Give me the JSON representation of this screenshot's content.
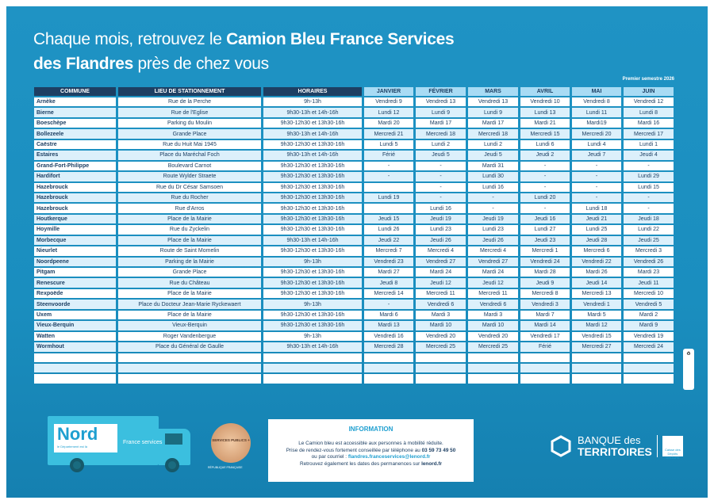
{
  "title": {
    "line1_regular": "Chaque mois, retrouvez le ",
    "line1_bold": "Camion Bleu France Services",
    "line2_bold": "des Flandres",
    "line2_regular": " près de chez vous"
  },
  "semester": "Premier semestre 2026",
  "headers": [
    "COMMUNE",
    "LIEU DE STATIONNEMENT",
    "HORAIRES",
    "JANVIER",
    "FÉVRIER",
    "MARS",
    "AVRIL",
    "MAI",
    "JUIN"
  ],
  "rows": [
    [
      "Arnèke",
      "Rue de la Perche",
      "9h-13h",
      "Vendredi 9",
      "Vendredi 13",
      "Vendredi 13",
      "Vendredi 10",
      "Vendredi 8",
      "Vendredi 12"
    ],
    [
      "Bierne",
      "Rue de l'Eglise",
      "9h30-13h et 14h-16h",
      "Lundi 12",
      "Lundi 9",
      "Lundi 9",
      "Lundi 13",
      "Lundi 11",
      "Lundi 8"
    ],
    [
      "Boeschèpe",
      "Parking du Moulin",
      "9h30-12h30 et 13h30-16h",
      "Mardi 20",
      "Mardi 17",
      "Mardi 17",
      "Mardi 21",
      "Mardi19",
      "Mardi 16"
    ],
    [
      "Bollezeele",
      "Grande Place",
      "9h30-13h et 14h-16h",
      "Mercredi 21",
      "Mercredi 18",
      "Mercredi 18",
      "Mercredi 15",
      "Mercredi 20",
      "Mercredi 17"
    ],
    [
      "Caëstre",
      "Rue du Huit Mai 1945",
      "9h30-12h30 et 13h30-16h",
      "Lundi 5",
      "Lundi 2",
      "Lundi 2",
      "Lundi 6",
      "Lundi 4",
      "Lundi 1"
    ],
    [
      "Estaires",
      "Place du Maréchal Foch",
      "9h30-13h et 14h-16h",
      "Férié",
      "Jeudi 5",
      "Jeudi 5",
      "Jeudi 2",
      "Jeudi 7",
      "Jeudi 4"
    ],
    [
      "Grand-Fort-Philippe",
      "Boulevard Carnot",
      "9h30-12h30 et 13h30-16h",
      "-",
      "-",
      "Mardi 31",
      "-",
      "-",
      "-"
    ],
    [
      "Hardifort",
      "Route Wylder Straete",
      "9h30-12h30 et 13h30-16h",
      "-",
      "-",
      "Lundi 30",
      "-",
      "-",
      "Lundi 29"
    ],
    [
      "Hazebrouck",
      "Rue du Dr César Samsoen",
      "9h30-12h30 et 13h30-16h",
      "",
      "-",
      "Lundi 16",
      "-",
      "-",
      "Lundi 15"
    ],
    [
      "Hazebrouck",
      "Rue du Rocher",
      "9h30-12h30 et 13h30-16h",
      "Lundi 19",
      "-",
      "-",
      "Lundi 20",
      "-",
      "-"
    ],
    [
      "Hazebrouck",
      "Rue d'Arros",
      "9h30-12h30 et 13h30-16h",
      "",
      "Lundi 16",
      "-",
      "-",
      "Lundi 18",
      "-"
    ],
    [
      "Houtkerque",
      "Place de la Mairie",
      "9h30-12h30 et 13h30-16h",
      "Jeudi 15",
      "Jeudi 19",
      "Jeudi 19",
      "Jeudi 16",
      "Jeudi 21",
      "Jeudi 18"
    ],
    [
      "Hoymille",
      "Rue du Zyckelin",
      "9h30-12h30 et 13h30-16h",
      "Lundi 26",
      "Lundi 23",
      "Lundi 23",
      "Lundi 27",
      "Lundi 25",
      "Lundi 22"
    ],
    [
      "Morbecque",
      "Place de la Mairie",
      "9h30-13h et 14h-16h",
      "Jeudi 22",
      "Jeudi 26",
      "Jeudi 26",
      "Jeudi 23",
      "Jeudi 28",
      "Jeudi 25"
    ],
    [
      "Nieurlet",
      "Route de Saint Momelin",
      "9h30-12h30 et 13h30-16h",
      "Mercredi 7",
      "Mercredi 4",
      "Mercredi 4",
      "Mercredi 1",
      "Mercredi 6",
      "Mercredi 3"
    ],
    [
      "Noordpeene",
      "Parking de la Mairie",
      "9h-13h",
      "Vendredi 23",
      "Vendredi 27",
      "Vendredi 27",
      "Vendredi 24",
      "Vendredi 22",
      "Vendredi 26"
    ],
    [
      "Pitgam",
      "Grande Place",
      "9h30-12h30 et 13h30-16h",
      "Mardi 27",
      "Mardi 24",
      "Mardi 24",
      "Mardi 28",
      "Mardi 26",
      "Mardi 23"
    ],
    [
      "Renescure",
      "Rue du Château",
      "9h30-12h30 et 13h30-16h",
      "Jeudi 8",
      "Jeudi 12",
      "Jeudi 12",
      "Jeudi 9",
      "Jeudi 14",
      "Jeudi 11"
    ],
    [
      "Rexpoëde",
      "Place de la Mairie",
      "9h30-12h30 et 13h30-16h",
      "Mercredi 14",
      "Mercredi 11",
      "Mercredi 11",
      "Mercredi 8",
      "Mercredi 13",
      "Mercredi 10"
    ],
    [
      "Steenvoorde",
      "Place du Docteur Jean-Marie Ryckewaert",
      "9h-13h",
      "-",
      "Vendredi 6",
      "Vendredi 6",
      "Vendredi 3",
      "Vendredi 1",
      "Vendredi 5"
    ],
    [
      "Uxem",
      "Place de la Mairie",
      "9h30-12h30 et 13h30-16h",
      "Mardi 6",
      "Mardi 3",
      "Mardi 3",
      "Mardi 7",
      "Mardi 5",
      "Mardi 2"
    ],
    [
      "Vieux-Berquin",
      "Vieux-Berquin",
      "9h30-12h30 et 13h30-16h",
      "Mardi 13",
      "Mardi 10",
      "Mardi 10",
      "Mardi 14",
      "Mardi 12",
      "Mardi 9"
    ],
    [
      "Watten",
      "Roger Vandenbergue",
      "9h-13h",
      "Vendredi 16",
      "Vendredi 20",
      "Vendredi 20",
      "Vendredi 17",
      "Vendredi 15",
      "Vendredi 19"
    ],
    [
      "Wormhout",
      "Place du Général de Gaulle",
      "9h30-13h et 14h-16h",
      "Mercredi 28",
      "Mercredi 25",
      "Mercredi 25",
      "Férié",
      "Mercredi 27",
      "Mercredi 24"
    ],
    [
      "",
      "",
      "",
      "",
      "",
      "",
      "",
      "",
      ""
    ],
    [
      "",
      "",
      "",
      "",
      "",
      "",
      "",
      "",
      ""
    ],
    [
      "",
      "",
      "",
      "",
      "",
      "",
      "",
      "",
      ""
    ]
  ],
  "truck": {
    "brand": "Nord",
    "tagline": "le Département est là",
    "services": "France services"
  },
  "seal": {
    "text": "SERVICES PUBLICS +",
    "footer": "RÉPUBLIQUE FRANÇAISE"
  },
  "info": {
    "heading": "INFORMATION",
    "line1": "Le Camion bleu est accessible aux personnes à mobilité réduite.",
    "line2": "Prise de rendez-vous fortement conseillée par téléphone au ",
    "phone": "03 59 73 49 50",
    "line3": "ou par courriel : ",
    "email": "flandres.franceservices@lenord.fr",
    "line4": "Retrouvez également les dates des permanences sur ",
    "site": "lenord.fr"
  },
  "partner": {
    "line1": "BANQUE des",
    "line2": "TERRITOIRES",
    "group": "Caisse des Dépôts GROUPE"
  },
  "colors": {
    "background": "#1a8ebf",
    "header_dark": "#1d3f63",
    "header_light": "#a8dbf4",
    "row_alt": "#dcf0fb"
  }
}
